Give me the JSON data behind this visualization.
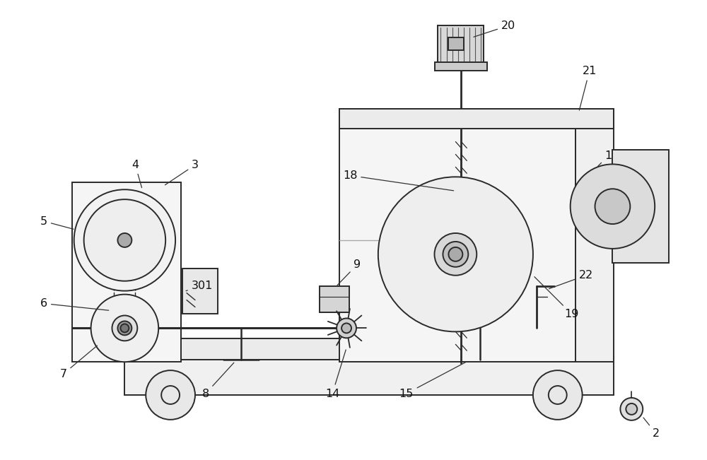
{
  "bg_color": "#ffffff",
  "line_color": "#2a2a2a",
  "fig_width": 10.0,
  "fig_height": 6.51,
  "dpi": 100
}
